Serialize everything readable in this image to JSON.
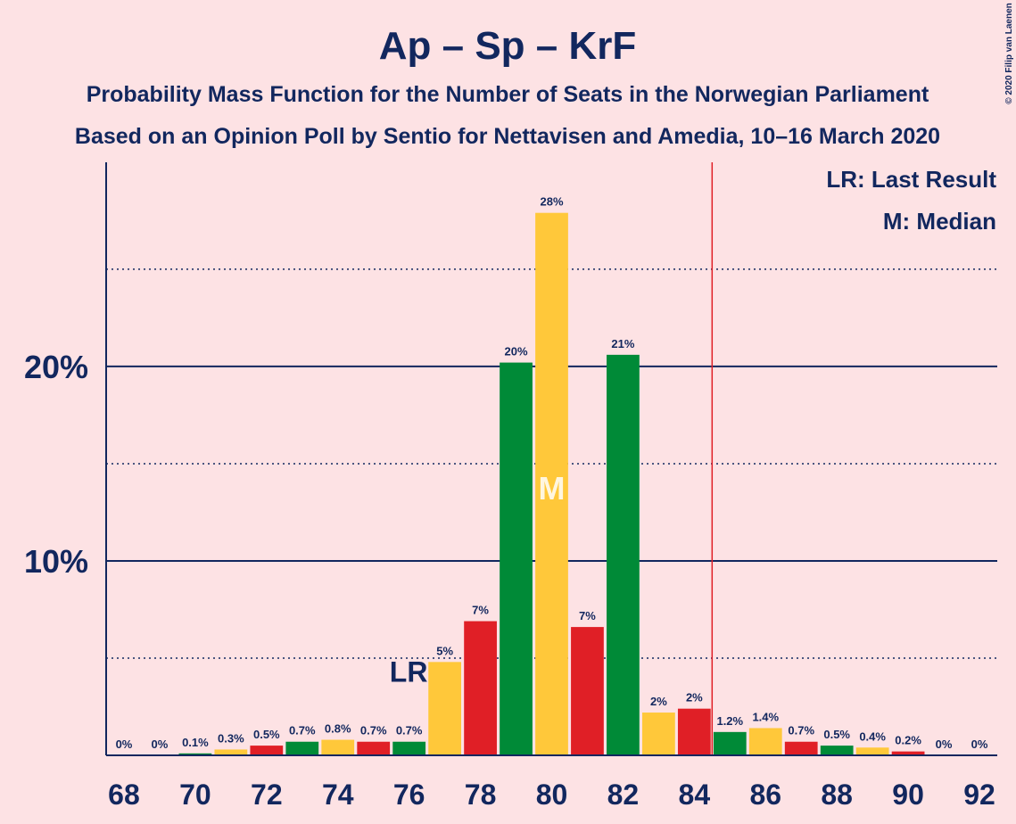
{
  "chart_data": {
    "type": "bar",
    "title": "Ap – Sp – KrF",
    "subtitle": [
      "Probability Mass Function for the Number of Seats in the Norwegian Parliament",
      "Based on an Opinion Poll by Sentio for Nettavisen and Amedia, 10–16 March 2020"
    ],
    "x": [
      68,
      69,
      70,
      71,
      72,
      73,
      74,
      75,
      76,
      77,
      78,
      79,
      80,
      81,
      82,
      83,
      84,
      85,
      86,
      87,
      88,
      89,
      90,
      91,
      92
    ],
    "values": [
      0,
      0,
      0.1,
      0.3,
      0.5,
      0.7,
      0.8,
      0.7,
      0.7,
      4.8,
      6.9,
      20.2,
      27.9,
      6.6,
      20.6,
      2.2,
      2.4,
      1.2,
      1.4,
      0.7,
      0.5,
      0.4,
      0.2,
      0,
      0
    ],
    "value_labels": [
      "0%",
      "0%",
      "0.1%",
      "0.3%",
      "0.5%",
      "0.7%",
      "0.8%",
      "0.7%",
      "0.7%",
      "5%",
      "7%",
      "20%",
      "28%",
      "7%",
      "21%",
      "2%",
      "2%",
      "1.2%",
      "1.4%",
      "0.7%",
      "0.5%",
      "0.4%",
      "0.2%",
      "0%",
      "0%"
    ],
    "colors": [
      "#e01f26",
      "#008a37",
      "#008a37",
      "#ffc83a",
      "#e01f26",
      "#008a37",
      "#ffc83a",
      "#e01f26",
      "#008a37",
      "#ffc83a",
      "#e01f26",
      "#008a37",
      "#ffc83a",
      "#e01f26",
      "#008a37",
      "#ffc83a",
      "#e01f26",
      "#008a37",
      "#ffc83a",
      "#e01f26",
      "#008a37",
      "#ffc83a",
      "#e01f26",
      "#008a37",
      "#ffc83a"
    ],
    "xlim": [
      67.5,
      92.5
    ],
    "xticks": [
      68,
      70,
      72,
      74,
      76,
      78,
      80,
      82,
      84,
      86,
      88,
      90,
      92
    ],
    "ylim": [
      0,
      30.5
    ],
    "yticks": [
      {
        "value": 10,
        "label": "10%"
      },
      {
        "value": 20,
        "label": "20%"
      }
    ],
    "minor_yticks": [
      5,
      15,
      25
    ],
    "last_result": {
      "x": 77,
      "label": "LR"
    },
    "median": {
      "x": 80,
      "label": "M"
    },
    "majority_line": 84.5,
    "legend": [
      "LR: Last Result",
      "M: Median"
    ],
    "credit": "© 2020 Filip van Laenen"
  }
}
